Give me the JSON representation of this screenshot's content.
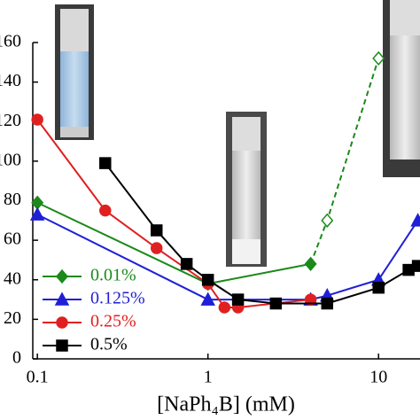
{
  "chart_data": {
    "type": "line",
    "x_label": "[NaPh₄B] (mM)",
    "x_log": true,
    "xlim": [
      0.094,
      17.5
    ],
    "xticks": [
      0.1,
      1,
      10
    ],
    "ylim": [
      0,
      160
    ],
    "yticks": [
      0,
      20,
      40,
      60,
      80,
      100,
      120,
      140,
      160
    ],
    "legend": "lower left",
    "series": [
      {
        "name": "0.01%",
        "color": "#1a8a1a",
        "marker": "diamond",
        "x": [
          0.1,
          1,
          4,
          5,
          10
        ],
        "values": [
          79,
          38,
          48,
          70,
          152
        ]
      },
      {
        "name": "0.125%",
        "color": "#1f1fd6",
        "marker": "triangle",
        "x": [
          0.1,
          1,
          4,
          5,
          10,
          17
        ],
        "values": [
          73,
          30,
          30,
          32,
          40,
          70
        ]
      },
      {
        "name": "0.25%",
        "color": "#e02020",
        "marker": "circle",
        "x": [
          0.1,
          0.25,
          0.5,
          1,
          1.25,
          1.5,
          4
        ],
        "values": [
          121,
          75,
          56,
          38,
          26,
          26,
          30
        ]
      },
      {
        "name": "0.5%",
        "color": "#000000",
        "marker": "square",
        "x": [
          0.25,
          0.5,
          0.75,
          1,
          1.5,
          2.5,
          5,
          10,
          15,
          17
        ],
        "values": [
          99,
          65,
          48,
          40,
          30,
          28,
          28,
          36,
          45,
          47
        ]
      }
    ]
  }
}
